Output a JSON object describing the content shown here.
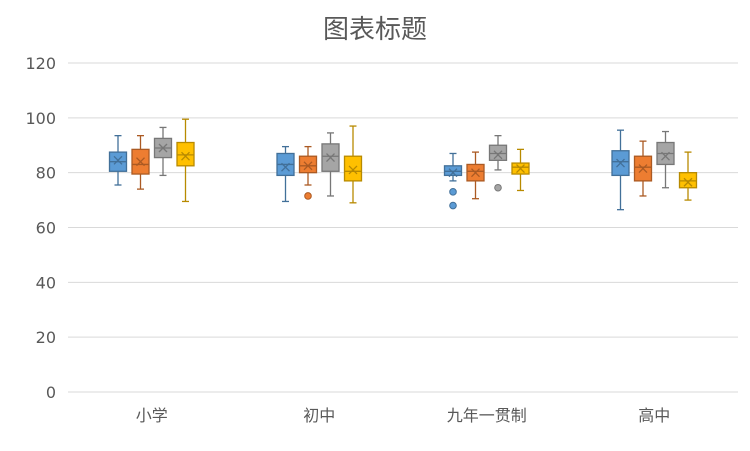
{
  "chart_data": {
    "type": "boxplot",
    "title": "图表标题",
    "xlabel": "",
    "ylabel": "",
    "ylim": [
      0,
      120
    ],
    "yticks": [
      0,
      20,
      40,
      60,
      80,
      100,
      120
    ],
    "grid": true,
    "legend": "none",
    "categories": [
      "小学",
      "初中",
      "九年一贯制",
      "高中"
    ],
    "series": [
      {
        "color": "#5b9bd5",
        "boxes": [
          {
            "min": 75.5,
            "q1": 80.5,
            "median": 84,
            "mean": 84.5,
            "q3": 87.5,
            "max": 93.5,
            "outliers": []
          },
          {
            "min": 69.5,
            "q1": 79,
            "median": 83,
            "mean": 82,
            "q3": 87,
            "max": 89.5,
            "outliers": []
          },
          {
            "min": 77,
            "q1": 79,
            "median": 80.5,
            "mean": 80,
            "q3": 82.5,
            "max": 87,
            "outliers": [
              73,
              68
            ]
          },
          {
            "min": 66.5,
            "q1": 79,
            "median": 84,
            "mean": 83.5,
            "q3": 88,
            "max": 95.5,
            "outliers": []
          }
        ]
      },
      {
        "color": "#ed7d31",
        "boxes": [
          {
            "min": 74,
            "q1": 79.5,
            "median": 83,
            "mean": 84,
            "q3": 88.5,
            "max": 93.5,
            "outliers": []
          },
          {
            "min": 75.5,
            "q1": 80,
            "median": 82.5,
            "mean": 82.5,
            "q3": 86,
            "max": 89.5,
            "outliers": [
              71.5
            ]
          },
          {
            "min": 70.5,
            "q1": 77,
            "median": 80.5,
            "mean": 80,
            "q3": 83,
            "max": 87.5,
            "outliers": []
          },
          {
            "min": 71.5,
            "q1": 77,
            "median": 82,
            "mean": 81.5,
            "q3": 86,
            "max": 91.5,
            "outliers": []
          }
        ]
      },
      {
        "color": "#a5a5a5",
        "boxes": [
          {
            "min": 79,
            "q1": 85.5,
            "median": 89,
            "mean": 89,
            "q3": 92.5,
            "max": 96.5,
            "outliers": []
          },
          {
            "min": 71.5,
            "q1": 80.5,
            "median": 86,
            "mean": 85.5,
            "q3": 90.5,
            "max": 94.5,
            "outliers": []
          },
          {
            "min": 81,
            "q1": 84.5,
            "median": 87,
            "mean": 86.5,
            "q3": 90,
            "max": 93.5,
            "outliers": [
              74.5
            ]
          },
          {
            "min": 74.5,
            "q1": 83,
            "median": 87,
            "mean": 86,
            "q3": 91,
            "max": 95,
            "outliers": []
          }
        ]
      },
      {
        "color": "#ffc000",
        "boxes": [
          {
            "min": 69.5,
            "q1": 82.5,
            "median": 86.5,
            "mean": 86,
            "q3": 91,
            "max": 99.5,
            "outliers": []
          },
          {
            "min": 69,
            "q1": 77,
            "median": 80.5,
            "mean": 81,
            "q3": 86,
            "max": 97,
            "outliers": []
          },
          {
            "min": 73.5,
            "q1": 79.5,
            "median": 82,
            "mean": 81.5,
            "q3": 83.5,
            "max": 88.5,
            "outliers": []
          },
          {
            "min": 70,
            "q1": 74.5,
            "median": 77,
            "mean": 76.5,
            "q3": 80,
            "max": 87.5,
            "outliers": []
          }
        ]
      }
    ]
  }
}
